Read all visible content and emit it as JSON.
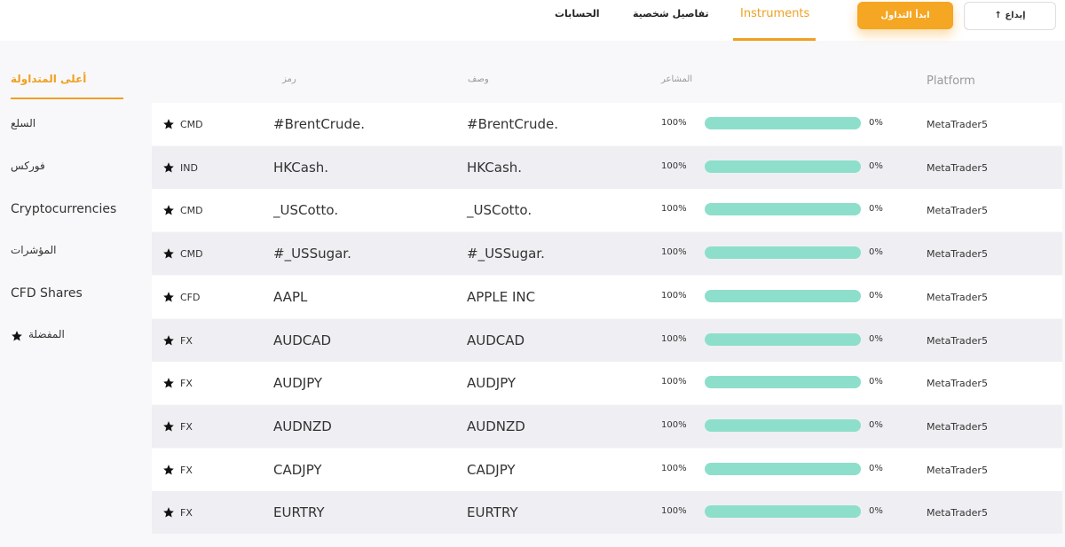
{
  "nav": {
    "tabs": [
      "الحسابات",
      "تفاصيل شخصية",
      "Instruments"
    ],
    "start_trading": "ابدأ التداول",
    "deposit": "إيداع"
  },
  "sidebar": {
    "items": [
      "أعلى المتداولة",
      "السلع",
      "فوركس",
      "Cryptocurrencies",
      "المؤشرات",
      "CFD Shares",
      "المفضلة"
    ]
  },
  "table": {
    "headers": [
      "رمز",
      "وصف",
      "المشاعر",
      "Platform"
    ],
    "rows": [
      [
        "CMD",
        "#BrentCrude.",
        "#BrentCrude.",
        "100%",
        "0%",
        "MetaTrader5"
      ],
      [
        "IND",
        "HKCash.",
        "HKCash.",
        "100%",
        "0%",
        "MetaTrader5"
      ],
      [
        "CMD",
        "_USCotto.",
        "_USCotto.",
        "100%",
        "0%",
        "MetaTrader5"
      ],
      [
        "CMD",
        "#_USSugar.",
        "#_USSugar.",
        "100%",
        "0%",
        "MetaTrader5"
      ],
      [
        "CFD",
        "AAPL",
        "APPLE INC",
        "100%",
        "0%",
        "MetaTrader5"
      ],
      [
        "FX",
        "AUDCAD",
        "AUDCAD",
        "100%",
        "0%",
        "MetaTrader5"
      ],
      [
        "FX",
        "AUDJPY",
        "AUDJPY",
        "100%",
        "0%",
        "MetaTrader5"
      ],
      [
        "FX",
        "AUDNZD",
        "AUDNZD",
        "100%",
        "0%",
        "MetaTrader5"
      ],
      [
        "FX",
        "CADJPY",
        "CADJPY",
        "100%",
        "0%",
        "MetaTrader5"
      ],
      [
        "FX",
        "EURTRY",
        "EURTRY",
        "100%",
        "0%",
        "MetaTrader5"
      ]
    ]
  }
}
